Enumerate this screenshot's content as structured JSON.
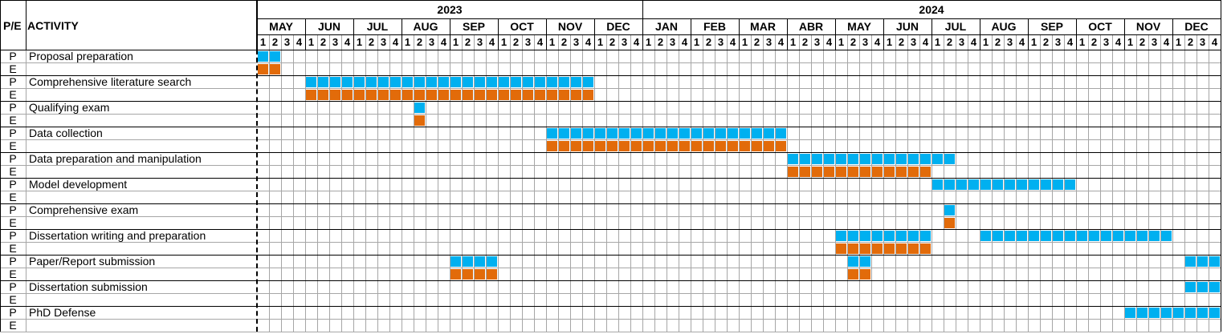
{
  "header": {
    "pe_label": "P/E",
    "activity_label": "ACTIVITY",
    "years": [
      {
        "label": "2023",
        "months": 8
      },
      {
        "label": "2024",
        "months": 12
      }
    ],
    "months": [
      "MAY",
      "JUN",
      "JUL",
      "AUG",
      "SEP",
      "OCT",
      "NOV",
      "DEC",
      "JAN",
      "FEB",
      "MAR",
      "ABR",
      "MAY",
      "JUN",
      "JUL",
      "AUG",
      "SEP",
      "OCT",
      "NOV",
      "DEC"
    ],
    "weeks": [
      "1",
      "2",
      "3",
      "4"
    ]
  },
  "colors": {
    "planned": "#00b0f0",
    "executed": "#e26b0a",
    "grid": "#a6a6a6",
    "border": "#000000"
  },
  "legend": {
    "planned_code": "P",
    "executed_code": "E"
  },
  "activities": [
    {
      "name": "Proposal preparation",
      "planned": [
        [
          1,
          2
        ]
      ],
      "executed": [
        [
          1,
          2
        ]
      ]
    },
    {
      "name": "Comprehensive literature search",
      "planned": [
        [
          5,
          28
        ]
      ],
      "executed": [
        [
          5,
          28
        ]
      ]
    },
    {
      "name": "Qualifying exam",
      "planned": [
        [
          14,
          14
        ]
      ],
      "executed": [
        [
          14,
          14
        ]
      ]
    },
    {
      "name": "Data collection",
      "planned": [
        [
          25,
          44
        ]
      ],
      "executed": [
        [
          25,
          44
        ]
      ]
    },
    {
      "name": "Data preparation and manipulation",
      "planned": [
        [
          45,
          58
        ]
      ],
      "executed": [
        [
          45,
          56
        ]
      ]
    },
    {
      "name": "Model development",
      "planned": [
        [
          57,
          68
        ]
      ],
      "executed": []
    },
    {
      "name": "Comprehensive exam",
      "planned": [
        [
          58,
          58
        ]
      ],
      "executed": [
        [
          58,
          58
        ]
      ]
    },
    {
      "name": "Dissertation writing and preparation",
      "planned": [
        [
          49,
          56
        ],
        [
          61,
          76
        ]
      ],
      "executed": [
        [
          49,
          56
        ]
      ]
    },
    {
      "name": "Paper/Report submission",
      "planned": [
        [
          17,
          20
        ],
        [
          50,
          51
        ],
        [
          78,
          80
        ]
      ],
      "executed": [
        [
          17,
          20
        ],
        [
          50,
          51
        ]
      ]
    },
    {
      "name": "Dissertation submission",
      "planned": [
        [
          78,
          80
        ]
      ],
      "executed": []
    },
    {
      "name": "PhD Defense",
      "planned": [
        [
          73,
          80
        ]
      ],
      "executed": []
    }
  ]
}
